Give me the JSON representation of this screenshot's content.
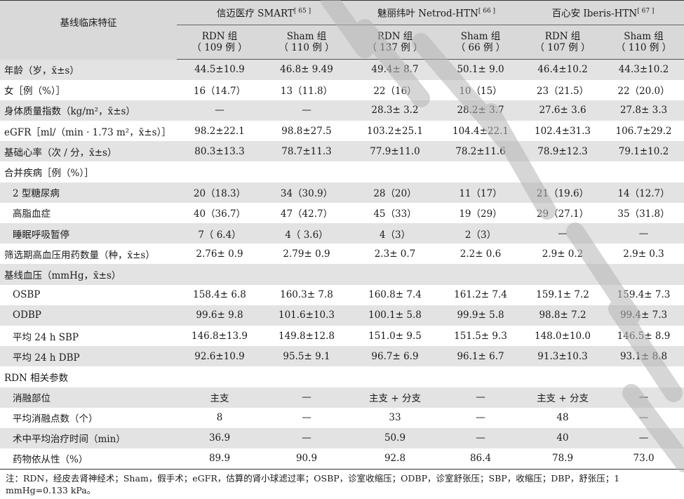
{
  "header": {
    "feature_label": "基线临床特征",
    "studies": [
      {
        "name": "信迈医疗 SMART",
        "ref": "[ 65 ]"
      },
      {
        "name": "魅丽纬叶 Netrod-HTN",
        "ref": "[ 66 ]"
      },
      {
        "name": "百心安 Iberis-HTN",
        "ref": "[ 67 ]"
      }
    ],
    "groups": [
      {
        "name": "RDN 组",
        "n": "（ 109 例 ）"
      },
      {
        "name": "Sham 组",
        "n": "（ 110 例 ）"
      },
      {
        "name": "RDN 组",
        "n": "（ 137 例 ）"
      },
      {
        "name": "Sham 组",
        "n": "（ 66 例 ）"
      },
      {
        "name": "RDN 组",
        "n": "（ 107 例 ）"
      },
      {
        "name": "Sham 组",
        "n": "（ 110 例 ）"
      }
    ]
  },
  "rows": [
    {
      "label": "年龄（岁，x̄±s）",
      "indent": false,
      "cells": [
        "44.5±10.9",
        "46.8± 9.49",
        "49.4± 8.7",
        "50.1± 9.0",
        "46.4±10.2",
        "44.3±10.2"
      ]
    },
    {
      "label": "女［例（%）］",
      "indent": false,
      "cells": [
        "16（14.7）",
        "13（11.8）",
        "22（16）",
        "10（15）",
        "23（21.5）",
        "22（20.0）"
      ]
    },
    {
      "label": "身体质量指数（kg/m²，x̄±s）",
      "indent": false,
      "cells": [
        "—",
        "—",
        "28.3± 3.2",
        "28.2± 3.7",
        "27.6± 3.6",
        "27.8± 3.3"
      ]
    },
    {
      "label": "eGFR［ml/（min · 1.73 m²，x̄±s）］",
      "indent": false,
      "cells": [
        "98.2±22.1",
        "98.8±27.5",
        "103.2±25.1",
        "104.4±22.1",
        "102.4±31.3",
        "106.7±29.2"
      ]
    },
    {
      "label": "基础心率（次 / 分，x̄±s）",
      "indent": false,
      "cells": [
        "80.3±13.3",
        "78.7±11.3",
        "77.9±11.0",
        "78.2±11.6",
        "78.9±12.3",
        "79.1±10.2"
      ]
    },
    {
      "label": "合并疾病［例（%）］",
      "indent": false,
      "cells": [
        "",
        "",
        "",
        "",
        "",
        ""
      ]
    },
    {
      "label": "2 型糖尿病",
      "indent": true,
      "cells": [
        "20（18.3）",
        "34（30.9）",
        "28（20）",
        "11（17）",
        "21（19.6）",
        "14（12.7）"
      ]
    },
    {
      "label": "高脂血症",
      "indent": true,
      "cells": [
        "40（36.7）",
        "47（42.7）",
        "45（33）",
        "19（29）",
        "29（27.1）",
        "35（31.8）"
      ]
    },
    {
      "label": "睡眠呼吸暂停",
      "indent": true,
      "cells": [
        "7（ 6.4）",
        "4（ 3.6）",
        "4（3）",
        "2（3）",
        "—",
        "—"
      ]
    },
    {
      "label": "筛选期高血压用药数量（种，x̄±s）",
      "indent": false,
      "cells": [
        "2.76± 0.9",
        "2.79± 0.9",
        "2.3± 0.7",
        "2.2± 0.6",
        "2.9± 0.2",
        "2.9± 0.3"
      ]
    },
    {
      "label": "基线血压（mmHg，x̄±s）",
      "indent": false,
      "cells": [
        "",
        "",
        "",
        "",
        "",
        ""
      ]
    },
    {
      "label": "OSBP",
      "indent": true,
      "cells": [
        "158.4± 6.8",
        "160.3± 7.8",
        "160.8± 7.4",
        "161.2± 7.4",
        "159.1± 7.2",
        "159.4± 7.3"
      ]
    },
    {
      "label": "ODBP",
      "indent": true,
      "cells": [
        "99.6± 9.8",
        "101.6±10.3",
        "100.1± 5.8",
        "99.9± 5.8",
        "98.8± 7.2",
        "99.4± 7.3"
      ]
    },
    {
      "label": "平均 24 h SBP",
      "indent": true,
      "cells": [
        "146.8±13.9",
        "149.8±12.8",
        "151.0± 9.5",
        "151.5± 9.3",
        "148.0±10.0",
        "146.5± 8.9"
      ]
    },
    {
      "label": "平均 24 h DBP",
      "indent": true,
      "cells": [
        "92.6±10.9",
        "95.5± 9.1",
        "96.7± 6.9",
        "96.1± 6.7",
        "91.3±10.3",
        "93.1± 8.8"
      ]
    },
    {
      "label": "RDN 相关参数",
      "indent": false,
      "cells": [
        "",
        "",
        "",
        "",
        "",
        ""
      ]
    },
    {
      "label": "消融部位",
      "indent": true,
      "cells": [
        "主支",
        "—",
        "主支 + 分支",
        "—",
        "主支 + 分支",
        "—"
      ]
    },
    {
      "label": "平均消融点数（个）",
      "indent": true,
      "cells": [
        "8",
        "—",
        "33",
        "—",
        "48",
        "—"
      ]
    },
    {
      "label": "术中平均治疗时间（min）",
      "indent": true,
      "cells": [
        "36.9",
        "—",
        "50.9",
        "—",
        "40",
        "—"
      ]
    },
    {
      "label": "药物依从性（%）",
      "indent": true,
      "cells": [
        "89.9",
        "90.9",
        "92.8",
        "86.4",
        "78.9",
        "73.0"
      ]
    }
  ],
  "note": "注：RDN，经皮去肾神经术；Sham，假手术；eGFR，估算的肾小球滤过率；OSBP，诊室收缩压；ODBP，诊室舒张压；SBP，收缩压；DBP，舒张压；1 mmHg=0.133 kPa。"
}
